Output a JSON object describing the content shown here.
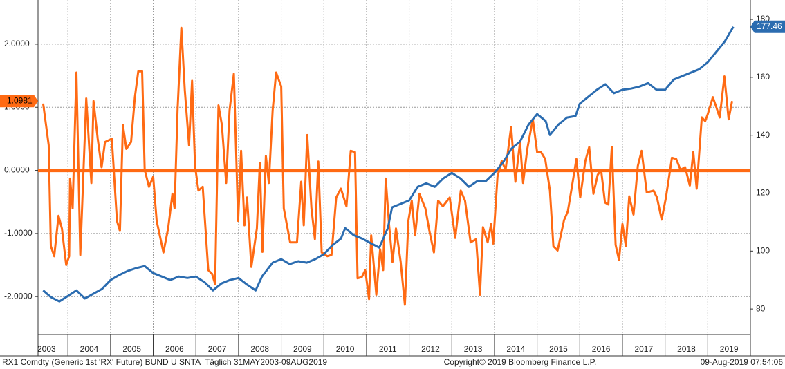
{
  "chart_data": {
    "type": "line",
    "xlim": [
      2003.3,
      2020
    ],
    "xticks": [
      {
        "value": 2003.5,
        "label": "2003"
      },
      {
        "value": 2004.5,
        "label": "2004"
      },
      {
        "value": 2005.5,
        "label": "2005"
      },
      {
        "value": 2006.5,
        "label": "2006"
      },
      {
        "value": 2007.5,
        "label": "2007"
      },
      {
        "value": 2008.5,
        "label": "2008"
      },
      {
        "value": 2009.5,
        "label": "2009"
      },
      {
        "value": 2010.5,
        "label": "2010"
      },
      {
        "value": 2011.5,
        "label": "2011"
      },
      {
        "value": 2012.5,
        "label": "2012"
      },
      {
        "value": 2013.5,
        "label": "2013"
      },
      {
        "value": 2014.5,
        "label": "2014"
      },
      {
        "value": 2015.5,
        "label": "2015"
      },
      {
        "value": 2016.5,
        "label": "2016"
      },
      {
        "value": 2017.5,
        "label": "2017"
      },
      {
        "value": 2018.5,
        "label": "2018"
      },
      {
        "value": 2019.5,
        "label": "2019"
      }
    ],
    "xgrid": [
      2004,
      2005,
      2006,
      2007,
      2008,
      2009,
      2010,
      2011,
      2012,
      2013,
      2014,
      2015,
      2016,
      2017,
      2018,
      2019
    ],
    "ylim": [
      -2.6,
      2.7
    ],
    "yticks": [
      {
        "value": 2,
        "label": "2.0000"
      },
      {
        "value": 1,
        "label": "1.0000"
      },
      {
        "value": 0,
        "label": "0.0000"
      },
      {
        "value": -1,
        "label": "-1.0000"
      },
      {
        "value": -2,
        "label": "-2.0000"
      }
    ],
    "y2lim": [
      71.2,
      186.7
    ],
    "y2ticks": [
      80,
      100,
      120,
      140,
      160,
      180
    ],
    "reference_line": 0,
    "grid": true,
    "series": [
      {
        "color": "#ff6a13",
        "x": [
          2003.42,
          2003.55,
          2003.6,
          2003.68,
          2003.78,
          2003.86,
          2003.96,
          2004.03,
          2004.05,
          2004.11,
          2004.2,
          2004.29,
          2004.43,
          2004.55,
          2004.6,
          2004.7,
          2004.79,
          2004.87,
          2005.03,
          2005.15,
          2005.22,
          2005.29,
          2005.37,
          2005.48,
          2005.57,
          2005.65,
          2005.74,
          2005.8,
          2005.9,
          2006.0,
          2006.08,
          2006.24,
          2006.35,
          2006.45,
          2006.5,
          2006.57,
          2006.66,
          2006.74,
          2006.84,
          2006.91,
          2006.98,
          2007.06,
          2007.16,
          2007.29,
          2007.38,
          2007.45,
          2007.53,
          2007.61,
          2007.71,
          2007.79,
          2007.89,
          2007.99,
          2008.06,
          2008.14,
          2008.2,
          2008.3,
          2008.43,
          2008.5,
          2008.56,
          2008.64,
          2008.71,
          2008.8,
          2008.88,
          2009.0,
          2009.06,
          2009.21,
          2009.37,
          2009.47,
          2009.53,
          2009.61,
          2009.71,
          2009.79,
          2009.87,
          2009.95,
          2010.08,
          2010.18,
          2010.29,
          2010.4,
          2010.53,
          2010.63,
          2010.73,
          2010.79,
          2010.89,
          2010.97,
          2011.06,
          2011.11,
          2011.23,
          2011.32,
          2011.39,
          2011.45,
          2011.53,
          2011.61,
          2011.69,
          2011.8,
          2011.9,
          2011.98,
          2012.06,
          2012.14,
          2012.24,
          2012.38,
          2012.48,
          2012.58,
          2012.68,
          2012.79,
          2012.95,
          2013.08,
          2013.21,
          2013.31,
          2013.44,
          2013.57,
          2013.66,
          2013.73,
          2013.84,
          2013.92,
          2013.97,
          2014.07,
          2014.17,
          2014.26,
          2014.39,
          2014.49,
          2014.6,
          2014.67,
          2014.77,
          2014.9,
          2015.0,
          2015.09,
          2015.19,
          2015.3,
          2015.38,
          2015.48,
          2015.63,
          2015.72,
          2015.8,
          2015.92,
          2016.01,
          2016.13,
          2016.22,
          2016.32,
          2016.42,
          2016.5,
          2016.59,
          2016.67,
          2016.75,
          2016.84,
          2016.92,
          2017.0,
          2017.08,
          2017.16,
          2017.26,
          2017.36,
          2017.45,
          2017.57,
          2017.73,
          2017.81,
          2017.92,
          2018.02,
          2018.16,
          2018.26,
          2018.36,
          2018.47,
          2018.58,
          2018.66,
          2018.74,
          2018.86,
          2018.94,
          2019.0,
          2019.12,
          2019.2,
          2019.28,
          2019.39,
          2019.49,
          2019.57
        ],
        "values": [
          1.06,
          0.4,
          -1.2,
          -1.36,
          -0.72,
          -0.92,
          -1.5,
          -1.36,
          -0.13,
          -0.6,
          1.55,
          -1.34,
          1.14,
          -0.2,
          1.1,
          0.5,
          0.05,
          0.45,
          0.5,
          -0.8,
          -0.96,
          0.72,
          0.34,
          0.45,
          1.16,
          1.57,
          1.57,
          0.01,
          -0.26,
          -0.1,
          -0.8,
          -1.3,
          -0.92,
          -0.37,
          -0.6,
          0.95,
          2.26,
          1.27,
          0.4,
          1.42,
          0.07,
          -0.32,
          -0.26,
          -1.58,
          -1.64,
          -1.8,
          1.03,
          0.72,
          -0.2,
          0.95,
          1.53,
          -0.8,
          0.31,
          -0.87,
          -0.43,
          -1.53,
          -0.92,
          0.12,
          -1.29,
          0.23,
          -0.2,
          0.95,
          1.55,
          1.33,
          -0.6,
          -1.14,
          -1.14,
          -0.18,
          -0.87,
          0.56,
          -0.6,
          -1.09,
          0.14,
          -1.3,
          -1.36,
          -1.34,
          -0.43,
          -0.29,
          -0.57,
          0.31,
          0.29,
          -1.71,
          -1.69,
          -1.58,
          -2.04,
          -1.03,
          -1.97,
          -1.25,
          -1.58,
          -0.13,
          -0.87,
          -1.45,
          -0.92,
          -1.45,
          -2.13,
          -0.8,
          -0.48,
          -1.03,
          -0.37,
          -0.6,
          -0.98,
          -1.3,
          -0.48,
          -0.57,
          -0.43,
          -1.07,
          -0.32,
          -0.48,
          -1.14,
          -1.09,
          -1.97,
          -0.9,
          -1.14,
          -0.85,
          -1.16,
          -0.1,
          0.15,
          0.01,
          0.69,
          -0.18,
          0.45,
          -0.2,
          0.34,
          0.81,
          0.29,
          0.29,
          0.18,
          -0.32,
          -1.2,
          -1.27,
          -0.79,
          -0.65,
          -0.32,
          0.18,
          -0.43,
          0.15,
          0.37,
          -0.37,
          -0.07,
          0.01,
          -0.51,
          -0.54,
          0.37,
          -1.18,
          -1.42,
          -0.85,
          -1.2,
          -0.41,
          -0.7,
          0.07,
          0.31,
          -0.35,
          -0.32,
          -0.43,
          -0.78,
          -0.43,
          0.2,
          0.18,
          0.01,
          0.05,
          -0.24,
          0.29,
          -0.29,
          0.84,
          0.78,
          0.89,
          1.16,
          1.0,
          0.84,
          1.49,
          0.81,
          1.0981
        ]
      },
      {
        "color": "#2b6cb0",
        "axis": "y2",
        "x": [
          2003.42,
          2003.6,
          2003.8,
          2004.0,
          2004.2,
          2004.4,
          2004.6,
          2004.8,
          2005.0,
          2005.2,
          2005.4,
          2005.6,
          2005.8,
          2006.0,
          2006.2,
          2006.4,
          2006.6,
          2006.8,
          2007.0,
          2007.2,
          2007.4,
          2007.6,
          2007.8,
          2008.0,
          2008.2,
          2008.4,
          2008.55,
          2008.8,
          2009.0,
          2009.2,
          2009.4,
          2009.6,
          2009.8,
          2010.0,
          2010.2,
          2010.4,
          2010.5,
          2010.7,
          2010.9,
          2011.1,
          2011.3,
          2011.5,
          2011.6,
          2011.8,
          2012.0,
          2012.2,
          2012.4,
          2012.6,
          2012.8,
          2013.0,
          2013.2,
          2013.4,
          2013.6,
          2013.8,
          2014.0,
          2014.2,
          2014.4,
          2014.6,
          2014.8,
          2015.0,
          2015.2,
          2015.3,
          2015.5,
          2015.7,
          2015.9,
          2016.0,
          2016.2,
          2016.4,
          2016.6,
          2016.8,
          2017.0,
          2017.2,
          2017.4,
          2017.6,
          2017.8,
          2018.0,
          2018.2,
          2018.4,
          2018.6,
          2018.8,
          2019.0,
          2019.2,
          2019.4,
          2019.6
        ],
        "values": [
          86.4,
          84.1,
          82.6,
          84.5,
          86.4,
          83.6,
          85.3,
          86.9,
          90.0,
          91.7,
          93.1,
          94.1,
          94.8,
          92.4,
          91.2,
          90.0,
          91.2,
          90.7,
          91.2,
          89.3,
          86.4,
          88.8,
          90.0,
          90.7,
          88.4,
          86.4,
          91.2,
          96.0,
          97.2,
          95.5,
          96.5,
          96.0,
          97.2,
          98.9,
          102.0,
          104.3,
          107.9,
          105.5,
          104.3,
          102.7,
          101.2,
          107.9,
          115.1,
          116.3,
          117.5,
          122.2,
          123.4,
          122.2,
          125.1,
          127.0,
          125.1,
          122.2,
          124.2,
          124.2,
          127.0,
          130.6,
          135.4,
          137.8,
          143.7,
          147.3,
          144.9,
          140.1,
          143.7,
          146.1,
          146.6,
          150.9,
          153.3,
          155.7,
          157.6,
          154.5,
          155.7,
          156.1,
          156.8,
          158.0,
          155.7,
          155.7,
          159.2,
          160.4,
          161.6,
          162.8,
          165.2,
          168.8,
          172.4,
          177.46
        ]
      }
    ],
    "footer": [
      "RX1 Comdty (Generic 1st 'RX' Future) BUND U SNTA  Täglich 31MAY2003-09AUG2019",
      "Copyright© 2019 Bloomberg Finance L.P.",
      "09-Aug-2019 07:54:06"
    ]
  }
}
